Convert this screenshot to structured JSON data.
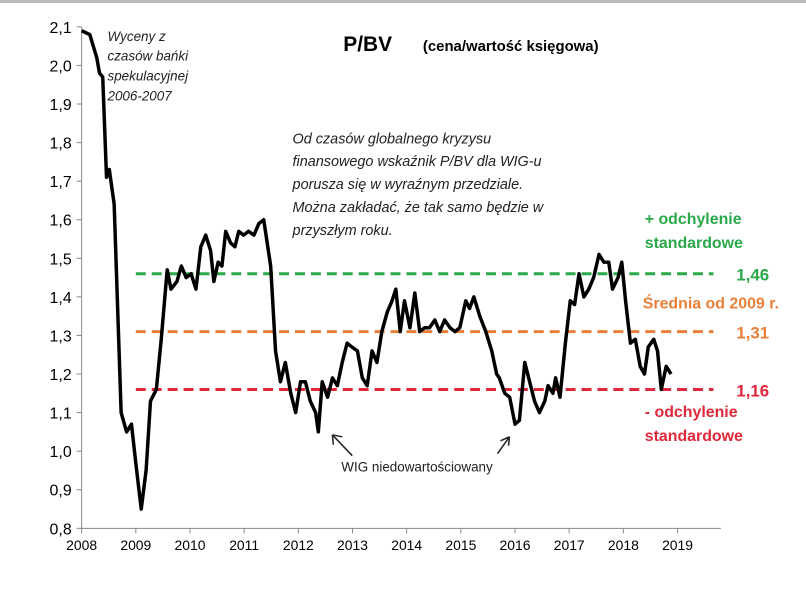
{
  "chart_data": {
    "type": "line",
    "title": "P/BV",
    "subtitle": "(cena/wartość księgowa)",
    "xlabel": "",
    "ylabel": "",
    "xlim": [
      2008,
      2019.8
    ],
    "ylim": [
      0.8,
      2.1
    ],
    "x_ticks": [
      "2008",
      "2009",
      "2010",
      "2011",
      "2012",
      "2013",
      "2014",
      "2015",
      "2016",
      "2017",
      "2018",
      "2019"
    ],
    "y_ticks": [
      "0,8",
      "0,9",
      "1,0",
      "1,1",
      "1,2",
      "1,3",
      "1,4",
      "1,5",
      "1,6",
      "1,7",
      "1,8",
      "1,9",
      "2,0",
      "2,1"
    ],
    "grid": false,
    "series": [
      {
        "color": "#000000",
        "points": [
          [
            2008.0,
            2.09
          ],
          [
            2008.15,
            2.08
          ],
          [
            2008.28,
            2.02
          ],
          [
            2008.33,
            1.98
          ],
          [
            2008.39,
            1.97
          ],
          [
            2008.46,
            1.71
          ],
          [
            2008.51,
            1.73
          ],
          [
            2008.6,
            1.64
          ],
          [
            2008.73,
            1.1
          ],
          [
            2008.83,
            1.05
          ],
          [
            2008.92,
            1.07
          ],
          [
            2009.0,
            0.97
          ],
          [
            2009.1,
            0.85
          ],
          [
            2009.19,
            0.95
          ],
          [
            2009.27,
            1.13
          ],
          [
            2009.38,
            1.16
          ],
          [
            2009.47,
            1.29
          ],
          [
            2009.58,
            1.47
          ],
          [
            2009.65,
            1.42
          ],
          [
            2009.76,
            1.44
          ],
          [
            2009.84,
            1.48
          ],
          [
            2009.93,
            1.45
          ],
          [
            2010.02,
            1.46
          ],
          [
            2010.11,
            1.42
          ],
          [
            2010.2,
            1.53
          ],
          [
            2010.29,
            1.56
          ],
          [
            2010.38,
            1.52
          ],
          [
            2010.44,
            1.44
          ],
          [
            2010.52,
            1.49
          ],
          [
            2010.59,
            1.48
          ],
          [
            2010.66,
            1.57
          ],
          [
            2010.75,
            1.54
          ],
          [
            2010.83,
            1.53
          ],
          [
            2010.9,
            1.57
          ],
          [
            2010.99,
            1.56
          ],
          [
            2011.08,
            1.57
          ],
          [
            2011.18,
            1.56
          ],
          [
            2011.27,
            1.59
          ],
          [
            2011.36,
            1.6
          ],
          [
            2011.49,
            1.48
          ],
          [
            2011.58,
            1.26
          ],
          [
            2011.67,
            1.18
          ],
          [
            2011.76,
            1.23
          ],
          [
            2011.86,
            1.15
          ],
          [
            2011.95,
            1.1
          ],
          [
            2012.04,
            1.18
          ],
          [
            2012.13,
            1.18
          ],
          [
            2012.22,
            1.13
          ],
          [
            2012.32,
            1.1
          ],
          [
            2012.37,
            1.05
          ],
          [
            2012.44,
            1.18
          ],
          [
            2012.54,
            1.14
          ],
          [
            2012.63,
            1.19
          ],
          [
            2012.72,
            1.17
          ],
          [
            2012.81,
            1.23
          ],
          [
            2012.9,
            1.28
          ],
          [
            2012.99,
            1.27
          ],
          [
            2013.09,
            1.26
          ],
          [
            2013.18,
            1.19
          ],
          [
            2013.27,
            1.17
          ],
          [
            2013.36,
            1.26
          ],
          [
            2013.45,
            1.23
          ],
          [
            2013.54,
            1.31
          ],
          [
            2013.64,
            1.36
          ],
          [
            2013.73,
            1.39
          ],
          [
            2013.8,
            1.42
          ],
          [
            2013.88,
            1.31
          ],
          [
            2013.96,
            1.39
          ],
          [
            2014.06,
            1.32
          ],
          [
            2014.15,
            1.41
          ],
          [
            2014.24,
            1.31
          ],
          [
            2014.33,
            1.32
          ],
          [
            2014.42,
            1.32
          ],
          [
            2014.52,
            1.34
          ],
          [
            2014.61,
            1.31
          ],
          [
            2014.7,
            1.34
          ],
          [
            2014.8,
            1.32
          ],
          [
            2014.89,
            1.31
          ],
          [
            2014.98,
            1.32
          ],
          [
            2015.09,
            1.39
          ],
          [
            2015.16,
            1.37
          ],
          [
            2015.24,
            1.4
          ],
          [
            2015.35,
            1.35
          ],
          [
            2015.46,
            1.31
          ],
          [
            2015.57,
            1.26
          ],
          [
            2015.66,
            1.2
          ],
          [
            2015.71,
            1.19
          ],
          [
            2015.81,
            1.15
          ],
          [
            2015.9,
            1.14
          ],
          [
            2016.0,
            1.07
          ],
          [
            2016.08,
            1.08
          ],
          [
            2016.18,
            1.23
          ],
          [
            2016.27,
            1.18
          ],
          [
            2016.36,
            1.13
          ],
          [
            2016.45,
            1.1
          ],
          [
            2016.55,
            1.13
          ],
          [
            2016.61,
            1.17
          ],
          [
            2016.7,
            1.15
          ],
          [
            2016.75,
            1.19
          ],
          [
            2016.83,
            1.14
          ],
          [
            2016.93,
            1.28
          ],
          [
            2017.02,
            1.39
          ],
          [
            2017.1,
            1.38
          ],
          [
            2017.18,
            1.46
          ],
          [
            2017.27,
            1.4
          ],
          [
            2017.36,
            1.42
          ],
          [
            2017.45,
            1.45
          ],
          [
            2017.55,
            1.51
          ],
          [
            2017.64,
            1.49
          ],
          [
            2017.73,
            1.49
          ],
          [
            2017.8,
            1.42
          ],
          [
            2017.9,
            1.45
          ],
          [
            2017.97,
            1.49
          ],
          [
            2018.04,
            1.39
          ],
          [
            2018.13,
            1.28
          ],
          [
            2018.22,
            1.29
          ],
          [
            2018.31,
            1.22
          ],
          [
            2018.39,
            1.2
          ],
          [
            2018.46,
            1.27
          ],
          [
            2018.56,
            1.29
          ],
          [
            2018.63,
            1.26
          ],
          [
            2018.7,
            1.16
          ],
          [
            2018.79,
            1.22
          ],
          [
            2018.88,
            1.2
          ]
        ]
      }
    ],
    "reference_lines": [
      {
        "value": 1.46,
        "label": "1,46",
        "caption": [
          "+ odchylenie",
          "standardowe"
        ],
        "color": "#2aa84a",
        "style": "dashed"
      },
      {
        "value": 1.31,
        "label": "1,31",
        "caption": [
          "Średnia od 2009 r."
        ],
        "color": "#e8803a",
        "style": "dashed"
      },
      {
        "value": 1.16,
        "label": "1,16",
        "caption": [
          "- odchylenie",
          "standardowe"
        ],
        "color": "#e0283a",
        "style": "dashed"
      }
    ],
    "ref_start_x": 2009,
    "annotations": {
      "bubble": [
        "Wyceny z",
        "czasów bańki",
        "spekulacyjnej",
        "2006-2007"
      ],
      "range_note": [
        "Od czasów globalnego kryzysu",
        "finansowego wskaźnik P/BV dla WIG-u",
        "porusza się w wyraźnym przedziale.",
        "Można zakładać, że tak samo będzie w",
        "przyszłym roku."
      ],
      "undervalued": "WIG niedowartościowany"
    }
  }
}
